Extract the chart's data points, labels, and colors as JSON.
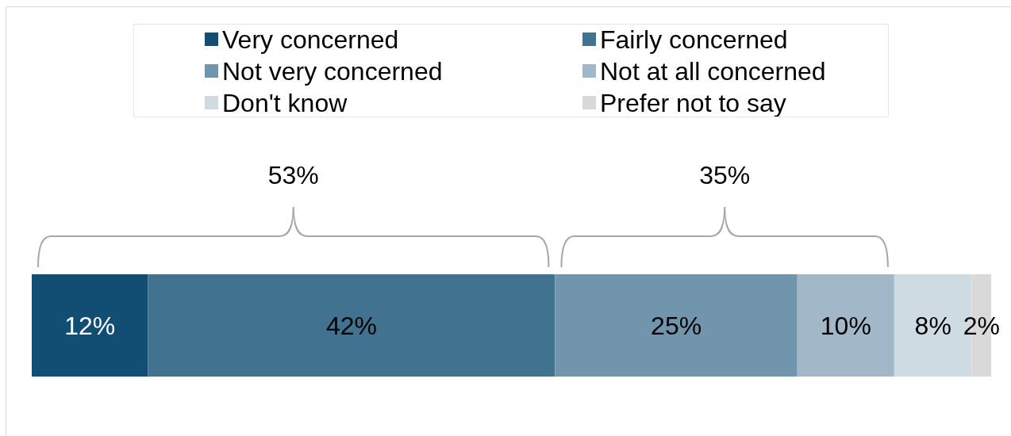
{
  "chart_data": {
    "type": "bar",
    "orientation": "horizontal",
    "stacked": true,
    "categories": [
      null
    ],
    "series": [
      {
        "name": "Very concerned",
        "color": "#124e73",
        "values": [
          12
        ],
        "value_labels": [
          "12%"
        ]
      },
      {
        "name": "Fairly concerned",
        "color": "#41728f",
        "values": [
          42
        ],
        "value_labels": [
          "42%"
        ]
      },
      {
        "name": "Not very concerned",
        "color": "#7095ad",
        "values": [
          25
        ],
        "value_labels": [
          "25%"
        ]
      },
      {
        "name": "Not at all concerned",
        "color": "#a2b8c8",
        "values": [
          10
        ],
        "value_labels": [
          "10%"
        ]
      },
      {
        "name": "Don't know",
        "color": "#cfdbe3",
        "values": [
          8
        ],
        "value_labels": [
          "8%"
        ]
      },
      {
        "name": "Prefer not to say",
        "color": "#d9d9d9",
        "values": [
          2
        ],
        "value_labels": [
          "2%"
        ]
      }
    ],
    "legend": "top",
    "annotations": [
      "53%",
      "35%"
    ]
  }
}
